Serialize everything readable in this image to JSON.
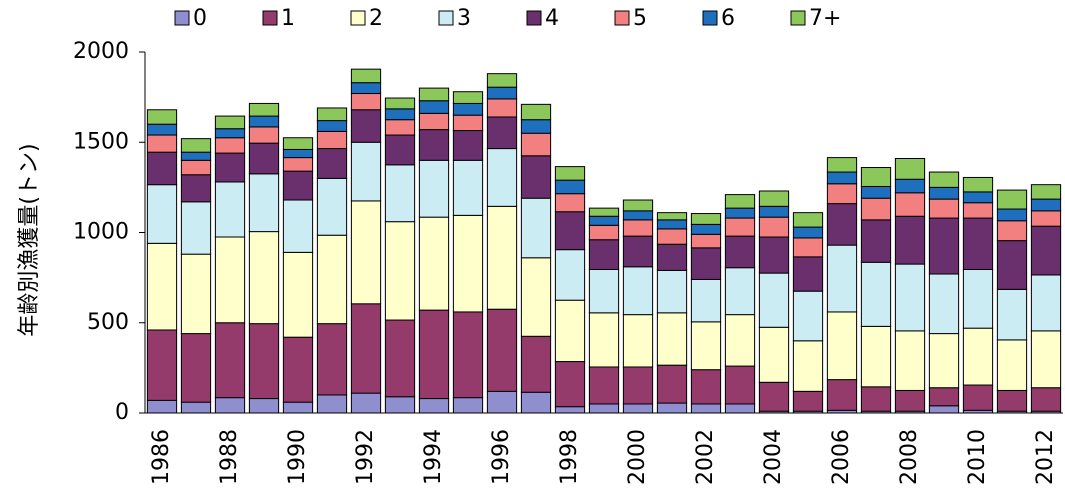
{
  "chart_data": {
    "type": "stacked-bar",
    "y_label": "年齢別漁獲量(トン)",
    "categories": [
      "1986",
      null,
      "1988",
      null,
      "1990",
      null,
      "1992",
      null,
      "1994",
      null,
      "1996",
      null,
      "1998",
      null,
      "2000",
      null,
      "2002",
      null,
      "2004",
      null,
      "2006",
      null,
      "2008",
      null,
      "2010",
      null,
      "2012"
    ],
    "series": [
      {
        "name": "0",
        "color": "#8f8fd0",
        "values": [
          70,
          60,
          85,
          80,
          60,
          100,
          110,
          90,
          80,
          85,
          120,
          115,
          35,
          50,
          50,
          55,
          50,
          50,
          10,
          10,
          15,
          10,
          10,
          40,
          15,
          10,
          10
        ]
      },
      {
        "name": "1",
        "color": "#953b6b",
        "values": [
          390,
          380,
          415,
          415,
          360,
          395,
          495,
          425,
          490,
          475,
          455,
          310,
          250,
          205,
          205,
          210,
          190,
          210,
          160,
          110,
          170,
          135,
          115,
          100,
          140,
          115,
          130
        ]
      },
      {
        "name": "2",
        "color": "#ffffcc",
        "values": [
          480,
          440,
          475,
          510,
          470,
          490,
          570,
          545,
          515,
          535,
          570,
          435,
          340,
          300,
          290,
          290,
          265,
          285,
          305,
          280,
          375,
          335,
          330,
          300,
          315,
          280,
          315
        ]
      },
      {
        "name": "3",
        "color": "#ccecf4",
        "values": [
          325,
          290,
          305,
          320,
          290,
          315,
          325,
          315,
          315,
          305,
          320,
          330,
          280,
          240,
          265,
          235,
          235,
          260,
          300,
          275,
          370,
          355,
          370,
          330,
          325,
          280,
          310
        ]
      },
      {
        "name": "4",
        "color": "#6a2f6d",
        "values": [
          180,
          150,
          160,
          170,
          160,
          165,
          180,
          165,
          170,
          165,
          175,
          235,
          210,
          165,
          170,
          145,
          175,
          175,
          200,
          190,
          230,
          235,
          265,
          310,
          285,
          270,
          270
        ]
      },
      {
        "name": "5",
        "color": "#f38080",
        "values": [
          95,
          80,
          85,
          90,
          75,
          95,
          90,
          85,
          90,
          85,
          100,
          125,
          100,
          80,
          90,
          85,
          75,
          100,
          110,
          105,
          110,
          120,
          130,
          105,
          85,
          110,
          85
        ]
      },
      {
        "name": "6",
        "color": "#1f6fbf",
        "values": [
          60,
          45,
          50,
          60,
          45,
          60,
          60,
          60,
          70,
          65,
          65,
          75,
          75,
          50,
          50,
          50,
          55,
          55,
          60,
          60,
          65,
          65,
          75,
          65,
          60,
          65,
          65
        ]
      },
      {
        "name": "7+",
        "color": "#8cc75c",
        "values": [
          80,
          75,
          70,
          70,
          65,
          70,
          75,
          60,
          70,
          65,
          75,
          85,
          75,
          45,
          60,
          40,
          60,
          75,
          85,
          80,
          80,
          105,
          115,
          85,
          80,
          105,
          80
        ]
      }
    ],
    "ylim": [
      0,
      2000
    ],
    "yticks": [
      0,
      500,
      1000,
      1500,
      2000
    ],
    "legend": "top"
  }
}
